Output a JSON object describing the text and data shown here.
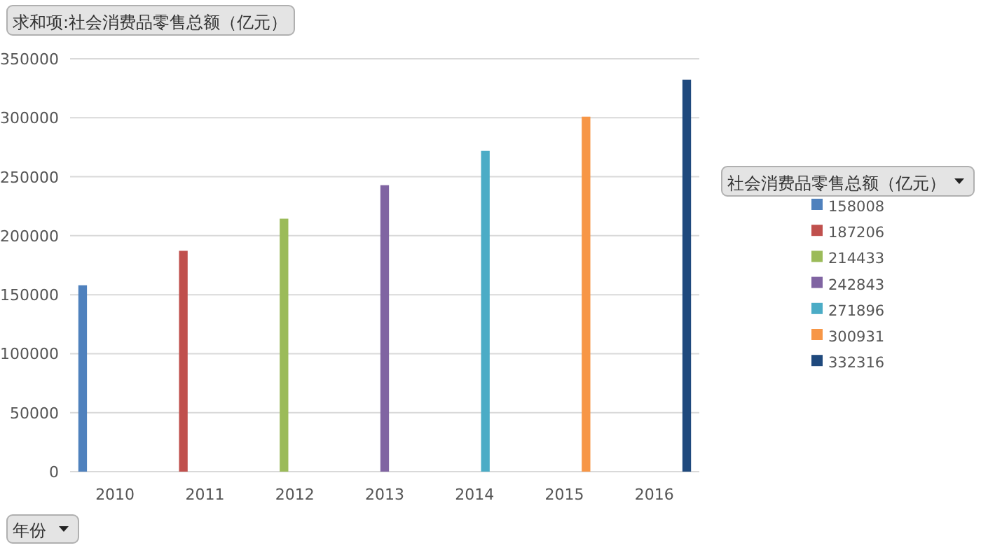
{
  "chart_data": {
    "type": "bar",
    "title": "求和项:社会消费品零售总额（亿元）",
    "xlabel": "年份",
    "legend_title": "社会消费品零售总额（亿元）",
    "categories": [
      "2010",
      "2011",
      "2012",
      "2013",
      "2014",
      "2015",
      "2016"
    ],
    "series": [
      {
        "name": "158008",
        "color": "#4f81bd",
        "values": [
          158008,
          null,
          null,
          null,
          null,
          null,
          null
        ]
      },
      {
        "name": "187206",
        "color": "#c0504d",
        "values": [
          null,
          187206,
          null,
          null,
          null,
          null,
          null
        ]
      },
      {
        "name": "214433",
        "color": "#9bbb59",
        "values": [
          null,
          null,
          214433,
          null,
          null,
          null,
          null
        ]
      },
      {
        "name": "242843",
        "color": "#8064a2",
        "values": [
          null,
          null,
          null,
          242843,
          null,
          null,
          null
        ]
      },
      {
        "name": "271896",
        "color": "#4bacc6",
        "values": [
          null,
          null,
          null,
          null,
          271896,
          null,
          null
        ]
      },
      {
        "name": "300931",
        "color": "#f79646",
        "values": [
          null,
          null,
          null,
          null,
          null,
          300931,
          null
        ]
      },
      {
        "name": "332316",
        "color": "#1f497d",
        "values": [
          null,
          null,
          null,
          null,
          null,
          null,
          332316
        ]
      }
    ],
    "ylim": [
      0,
      350000
    ],
    "yticks": [
      0,
      50000,
      100000,
      150000,
      200000,
      250000,
      300000,
      350000
    ],
    "grid": "y",
    "legend": "right"
  }
}
